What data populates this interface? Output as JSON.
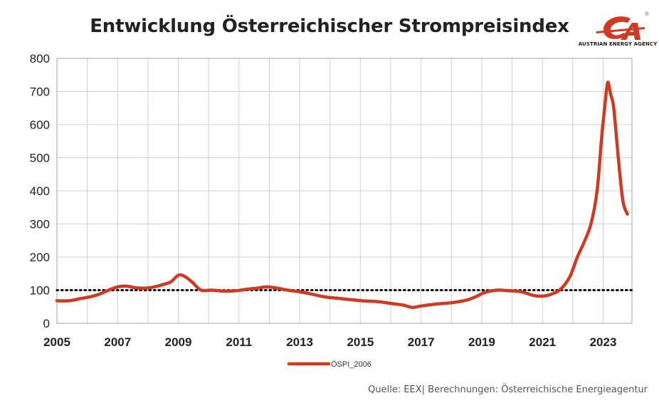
{
  "chart_data": {
    "type": "line",
    "title": "Entwicklung Österreichischer Strompreisindex",
    "xlabel": "",
    "ylabel": "",
    "xlim": [
      2005,
      2023.95
    ],
    "ylim": [
      0,
      800
    ],
    "yticks": [
      0,
      100,
      200,
      300,
      400,
      500,
      600,
      700,
      800
    ],
    "xticks": [
      2005,
      2007,
      2009,
      2011,
      2013,
      2015,
      2017,
      2019,
      2021,
      2023
    ],
    "grid": true,
    "legend_position": "bottom",
    "reference_line": {
      "value": 100,
      "style": "dotted",
      "color": "#000000"
    },
    "series": [
      {
        "name": "ÖSPI_2006",
        "color": "#cf3a22",
        "points": [
          [
            2005.0,
            68
          ],
          [
            2005.4,
            68
          ],
          [
            2005.8,
            75
          ],
          [
            2006.1,
            80
          ],
          [
            2006.4,
            88
          ],
          [
            2006.7,
            100
          ],
          [
            2007.0,
            110
          ],
          [
            2007.3,
            112
          ],
          [
            2007.6,
            107
          ],
          [
            2007.9,
            106
          ],
          [
            2008.2,
            110
          ],
          [
            2008.5,
            117
          ],
          [
            2008.75,
            125
          ],
          [
            2009.0,
            145
          ],
          [
            2009.2,
            142
          ],
          [
            2009.45,
            125
          ],
          [
            2009.75,
            100
          ],
          [
            2010.1,
            100
          ],
          [
            2010.5,
            97
          ],
          [
            2010.9,
            98
          ],
          [
            2011.2,
            102
          ],
          [
            2011.6,
            106
          ],
          [
            2011.9,
            110
          ],
          [
            2012.2,
            107
          ],
          [
            2012.6,
            100
          ],
          [
            2013.0,
            95
          ],
          [
            2013.4,
            88
          ],
          [
            2013.8,
            80
          ],
          [
            2014.3,
            75
          ],
          [
            2014.8,
            70
          ],
          [
            2015.2,
            67
          ],
          [
            2015.6,
            65
          ],
          [
            2016.0,
            60
          ],
          [
            2016.4,
            55
          ],
          [
            2016.7,
            48
          ],
          [
            2017.0,
            52
          ],
          [
            2017.5,
            58
          ],
          [
            2018.0,
            62
          ],
          [
            2018.5,
            70
          ],
          [
            2018.8,
            80
          ],
          [
            2019.1,
            93
          ],
          [
            2019.5,
            100
          ],
          [
            2019.9,
            98
          ],
          [
            2020.3,
            95
          ],
          [
            2020.7,
            84
          ],
          [
            2021.0,
            82
          ],
          [
            2021.3,
            88
          ],
          [
            2021.6,
            103
          ],
          [
            2021.9,
            140
          ],
          [
            2022.15,
            200
          ],
          [
            2022.35,
            240
          ],
          [
            2022.6,
            300
          ],
          [
            2022.8,
            400
          ],
          [
            2022.95,
            560
          ],
          [
            2023.05,
            650
          ],
          [
            2023.15,
            727
          ],
          [
            2023.25,
            690
          ],
          [
            2023.35,
            650
          ],
          [
            2023.5,
            500
          ],
          [
            2023.65,
            370
          ],
          [
            2023.8,
            330
          ]
        ]
      }
    ]
  },
  "logo": {
    "brand_text": "AUSTRIAN ENERGY AGENCY",
    "registered": "®",
    "brand_color": "#cf3a22"
  },
  "source_text": "Quelle: EEX| Berechnungen: Österreichische Energieagentur"
}
